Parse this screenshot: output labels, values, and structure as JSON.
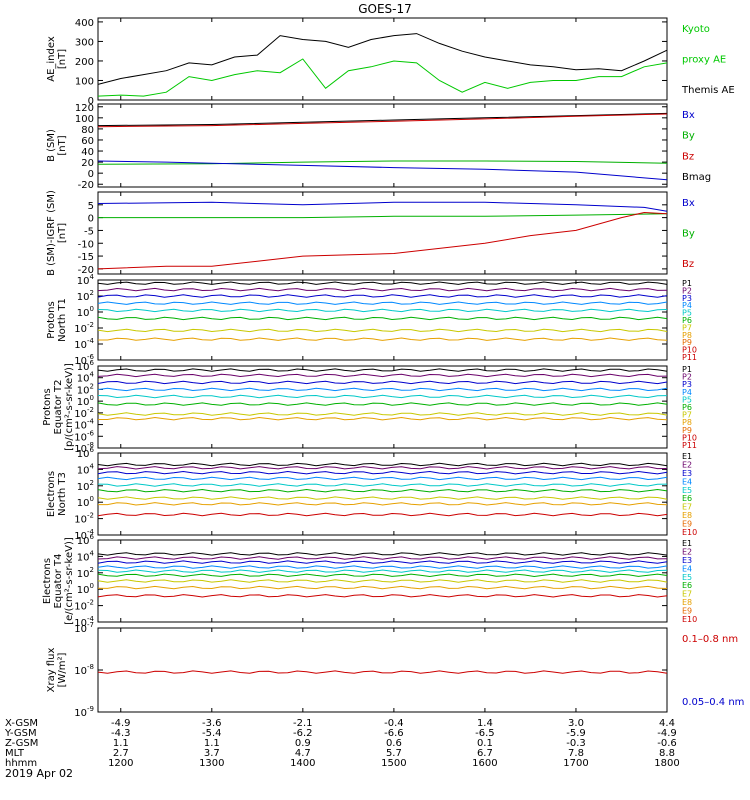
{
  "title": "GOES-17",
  "date_label": "2019 Apr 02",
  "orbit_table": {
    "rows": [
      {
        "label": "X-GSM",
        "values": [
          "-4.9",
          "-3.6",
          "-2.1",
          "-0.4",
          "1.4",
          "3.0",
          "4.4"
        ]
      },
      {
        "label": "Y-GSM",
        "values": [
          "-4.3",
          "-5.4",
          "-6.2",
          "-6.6",
          "-6.5",
          "-5.9",
          "-4.9"
        ]
      },
      {
        "label": "Z-GSM",
        "values": [
          "1.1",
          "1.1",
          "0.9",
          "0.6",
          "0.1",
          "-0.3",
          "-0.6"
        ]
      },
      {
        "label": "MLT",
        "values": [
          "2.7",
          "3.7",
          "4.7",
          "5.7",
          "6.7",
          "7.8",
          "8.8"
        ]
      },
      {
        "label": "hhmm",
        "values": [
          "1200",
          "1300",
          "1400",
          "1500",
          "1600",
          "1700",
          "1800"
        ]
      }
    ]
  },
  "chart_data": [
    {
      "type": "line",
      "id": "ae",
      "ylabel": [
        "AE_index",
        "[nT]"
      ],
      "ylim": [
        0,
        420
      ],
      "yticks": [
        0,
        100,
        200,
        300,
        400
      ],
      "log": false,
      "time_range": [
        "11:45",
        "18:00"
      ],
      "legend": [
        {
          "text": "Kyoto",
          "color": "#00c800"
        },
        {
          "text": "proxy AE",
          "color": "#00c800"
        },
        {
          "text": "Themis AE",
          "color": "#000000"
        }
      ],
      "series": [
        {
          "color": "#000000",
          "points": [
            [
              11.75,
              80
            ],
            [
              12.0,
              110
            ],
            [
              12.25,
              130
            ],
            [
              12.5,
              150
            ],
            [
              12.75,
              190
            ],
            [
              13.0,
              180
            ],
            [
              13.25,
              220
            ],
            [
              13.5,
              230
            ],
            [
              13.75,
              330
            ],
            [
              14.0,
              310
            ],
            [
              14.25,
              300
            ],
            [
              14.5,
              270
            ],
            [
              14.75,
              310
            ],
            [
              15.0,
              330
            ],
            [
              15.25,
              340
            ],
            [
              15.5,
              290
            ],
            [
              15.75,
              250
            ],
            [
              16.0,
              220
            ],
            [
              16.25,
              200
            ],
            [
              16.5,
              180
            ],
            [
              16.75,
              170
            ],
            [
              17.0,
              155
            ],
            [
              17.25,
              160
            ],
            [
              17.5,
              150
            ],
            [
              17.75,
              200
            ],
            [
              18.0,
              255
            ]
          ]
        },
        {
          "color": "#00c800",
          "points": [
            [
              11.75,
              20
            ],
            [
              12.0,
              25
            ],
            [
              12.25,
              20
            ],
            [
              12.5,
              40
            ],
            [
              12.75,
              120
            ],
            [
              13.0,
              100
            ],
            [
              13.25,
              130
            ],
            [
              13.5,
              150
            ],
            [
              13.75,
              140
            ],
            [
              14.0,
              210
            ],
            [
              14.25,
              60
            ],
            [
              14.5,
              150
            ],
            [
              14.75,
              170
            ],
            [
              15.0,
              200
            ],
            [
              15.25,
              190
            ],
            [
              15.5,
              100
            ],
            [
              15.75,
              40
            ],
            [
              16.0,
              90
            ],
            [
              16.25,
              60
            ],
            [
              16.5,
              90
            ],
            [
              16.75,
              100
            ],
            [
              17.0,
              100
            ],
            [
              17.25,
              120
            ],
            [
              17.5,
              120
            ],
            [
              17.75,
              170
            ],
            [
              18.0,
              190
            ]
          ]
        }
      ]
    },
    {
      "type": "line",
      "id": "bsm",
      "ylabel": [
        "B (SM)",
        "[nT]"
      ],
      "ylim": [
        -25,
        125
      ],
      "yticks": [
        -20,
        0,
        20,
        40,
        60,
        80,
        100,
        120
      ],
      "log": false,
      "legend": [
        {
          "text": "Bx",
          "color": "#0000cc"
        },
        {
          "text": "By",
          "color": "#00b000"
        },
        {
          "text": "Bz",
          "color": "#cc0000"
        },
        {
          "text": "Bmag",
          "color": "#000000"
        }
      ],
      "series": [
        {
          "color": "#000000",
          "points": [
            [
              11.75,
              86
            ],
            [
              13.0,
              88
            ],
            [
              14.0,
              92
            ],
            [
              15.0,
              96
            ],
            [
              16.0,
              100
            ],
            [
              17.0,
              104
            ],
            [
              18.0,
              108
            ]
          ]
        },
        {
          "color": "#cc0000",
          "points": [
            [
              11.75,
              84
            ],
            [
              13.0,
              86
            ],
            [
              14.0,
              90
            ],
            [
              15.0,
              94
            ],
            [
              16.0,
              98
            ],
            [
              17.0,
              103
            ],
            [
              18.0,
              107
            ]
          ]
        },
        {
          "color": "#00b000",
          "points": [
            [
              11.75,
              16
            ],
            [
              13.0,
              17
            ],
            [
              14.0,
              20
            ],
            [
              15.0,
              22
            ],
            [
              16.0,
              22
            ],
            [
              17.0,
              21
            ],
            [
              18.0,
              18
            ]
          ]
        },
        {
          "color": "#0000cc",
          "points": [
            [
              11.75,
              22
            ],
            [
              12.5,
              20
            ],
            [
              13.0,
              18
            ],
            [
              14.0,
              14
            ],
            [
              15.0,
              10
            ],
            [
              16.0,
              7
            ],
            [
              17.0,
              2
            ],
            [
              18.0,
              -12
            ]
          ]
        }
      ]
    },
    {
      "type": "line",
      "id": "bdiff",
      "ylabel": [
        "B (SM)-IGRF (SM)",
        "[nT]"
      ],
      "ylim": [
        -22,
        10
      ],
      "yticks": [
        -20,
        -15,
        -10,
        -5,
        0,
        5
      ],
      "log": false,
      "legend": [
        {
          "text": "Bx",
          "color": "#0000cc"
        },
        {
          "text": "By",
          "color": "#00b000"
        },
        {
          "text": "Bz",
          "color": "#cc0000"
        }
      ],
      "series": [
        {
          "color": "#0000cc",
          "points": [
            [
              11.75,
              5.5
            ],
            [
              13.0,
              6
            ],
            [
              14.0,
              5
            ],
            [
              15.0,
              6
            ],
            [
              16.0,
              6
            ],
            [
              17.0,
              5
            ],
            [
              17.75,
              4
            ],
            [
              18.0,
              2.5
            ]
          ]
        },
        {
          "color": "#00b000",
          "points": [
            [
              11.75,
              0
            ],
            [
              13.0,
              0
            ],
            [
              14.0,
              0
            ],
            [
              15.0,
              0.5
            ],
            [
              16.0,
              0.5
            ],
            [
              17.0,
              1
            ],
            [
              18.0,
              1.5
            ]
          ]
        },
        {
          "color": "#cc0000",
          "points": [
            [
              11.75,
              -20
            ],
            [
              12.5,
              -19
            ],
            [
              13.0,
              -19
            ],
            [
              13.5,
              -17
            ],
            [
              14.0,
              -15
            ],
            [
              15.0,
              -14
            ],
            [
              16.0,
              -10
            ],
            [
              16.5,
              -7
            ],
            [
              17.0,
              -5
            ],
            [
              17.5,
              0
            ],
            [
              17.75,
              2
            ],
            [
              18.0,
              1.5
            ]
          ]
        }
      ]
    },
    {
      "type": "line",
      "id": "p-north",
      "ylabel": [
        "Protons",
        "North T1"
      ],
      "ylim_log10": [
        -6,
        4
      ],
      "ytick_exponents": [
        -6,
        -4,
        -2,
        0,
        2,
        4
      ],
      "log": true,
      "legend": [
        {
          "text": "P1",
          "color": "#000000"
        },
        {
          "text": "P2",
          "color": "#6a006a"
        },
        {
          "text": "P3",
          "color": "#0000cc"
        },
        {
          "text": "P4",
          "color": "#0088ff"
        },
        {
          "text": "P5",
          "color": "#00c8c8"
        },
        {
          "text": "P6",
          "color": "#00b000"
        },
        {
          "text": "P7",
          "color": "#c8c800"
        },
        {
          "text": "P8",
          "color": "#e6a000"
        },
        {
          "text": "P9",
          "color": "#e66a00"
        },
        {
          "text": "P10",
          "color": "#cc0000"
        },
        {
          "text": "P11",
          "color": "#cc0000"
        }
      ],
      "series": [
        {
          "color": "#000000",
          "log10": 3.6
        },
        {
          "color": "#6a006a",
          "log10": 2.8
        },
        {
          "color": "#0000cc",
          "log10": 2.0
        },
        {
          "color": "#0088ff",
          "log10": 1.1
        },
        {
          "color": "#00c8c8",
          "log10": 0.2
        },
        {
          "color": "#00b000",
          "log10": -0.8
        },
        {
          "color": "#c8c800",
          "log10": -2.3
        },
        {
          "color": "#e6a000",
          "log10": -3.4
        }
      ]
    },
    {
      "type": "line",
      "id": "p-equator",
      "ylabel": [
        "Protons",
        "Equator T2",
        "[p/(cm²-s-sr-keV)]"
      ],
      "ylim_log10": [
        -8,
        6
      ],
      "ytick_exponents": [
        -8,
        -6,
        -4,
        -2,
        0,
        2,
        4,
        6
      ],
      "log": true,
      "legend": [
        {
          "text": "P1",
          "color": "#000000"
        },
        {
          "text": "P2",
          "color": "#6a006a"
        },
        {
          "text": "P3",
          "color": "#0000cc"
        },
        {
          "text": "P4",
          "color": "#0088ff"
        },
        {
          "text": "P5",
          "color": "#00c8c8"
        },
        {
          "text": "P6",
          "color": "#00b000"
        },
        {
          "text": "P7",
          "color": "#c8c800"
        },
        {
          "text": "P8",
          "color": "#e6a000"
        },
        {
          "text": "P9",
          "color": "#e66a00"
        },
        {
          "text": "P10",
          "color": "#cc0000"
        },
        {
          "text": "P11",
          "color": "#cc0000"
        }
      ],
      "series": [
        {
          "color": "#000000",
          "log10": 5.3
        },
        {
          "color": "#6a006a",
          "log10": 4.4
        },
        {
          "color": "#0000cc",
          "log10": 3.2
        },
        {
          "color": "#0088ff",
          "log10": 2.0
        },
        {
          "color": "#00c8c8",
          "log10": 0.8
        },
        {
          "color": "#00b000",
          "log10": -0.5
        },
        {
          "color": "#c8c800",
          "log10": -2.2
        },
        {
          "color": "#e6a000",
          "log10": -3.0
        }
      ]
    },
    {
      "type": "line",
      "id": "e-north",
      "ylabel": [
        "Electrons",
        "North T3"
      ],
      "ylim_log10": [
        -4,
        6
      ],
      "ytick_exponents": [
        -4,
        -2,
        0,
        2,
        4,
        6
      ],
      "log": true,
      "legend": [
        {
          "text": "E1",
          "color": "#000000"
        },
        {
          "text": "E2",
          "color": "#6a006a"
        },
        {
          "text": "E3",
          "color": "#0000cc"
        },
        {
          "text": "E4",
          "color": "#0088ff"
        },
        {
          "text": "E5",
          "color": "#00c8c8"
        },
        {
          "text": "E6",
          "color": "#00b000"
        },
        {
          "text": "E7",
          "color": "#c8c800"
        },
        {
          "text": "E8",
          "color": "#e6a000"
        },
        {
          "text": "E9",
          "color": "#e66a00"
        },
        {
          "text": "E10",
          "color": "#cc0000"
        }
      ],
      "series": [
        {
          "color": "#000000",
          "log10": 4.6
        },
        {
          "color": "#6a006a",
          "log10": 4.2
        },
        {
          "color": "#0000cc",
          "log10": 3.6
        },
        {
          "color": "#0088ff",
          "log10": 2.9
        },
        {
          "color": "#00c8c8",
          "log10": 2.1
        },
        {
          "color": "#00b000",
          "log10": 1.4
        },
        {
          "color": "#c8c800",
          "log10": 0.5
        },
        {
          "color": "#e6a000",
          "log10": -0.2
        },
        {
          "color": "#cc0000",
          "log10": -1.5
        }
      ]
    },
    {
      "type": "line",
      "id": "e-equator",
      "ylabel": [
        "Electrons",
        "Equator T4",
        "[e/(cm²-s-sr-keV)]"
      ],
      "ylim_log10": [
        -4,
        6
      ],
      "ytick_exponents": [
        -4,
        -2,
        0,
        2,
        4,
        6
      ],
      "log": true,
      "legend": [
        {
          "text": "E1",
          "color": "#000000"
        },
        {
          "text": "E2",
          "color": "#6a006a"
        },
        {
          "text": "E3",
          "color": "#0000cc"
        },
        {
          "text": "E4",
          "color": "#0088ff"
        },
        {
          "text": "E5",
          "color": "#00c8c8"
        },
        {
          "text": "E6",
          "color": "#00b000"
        },
        {
          "text": "E7",
          "color": "#c8c800"
        },
        {
          "text": "E8",
          "color": "#e6a000"
        },
        {
          "text": "E9",
          "color": "#e66a00"
        },
        {
          "text": "E10",
          "color": "#cc0000"
        }
      ],
      "series": [
        {
          "color": "#000000",
          "log10": 4.3
        },
        {
          "color": "#6a006a",
          "log10": 3.8
        },
        {
          "color": "#0000cc",
          "log10": 3.3
        },
        {
          "color": "#0088ff",
          "log10": 2.7
        },
        {
          "color": "#00c8c8",
          "log10": 2.2
        },
        {
          "color": "#00b000",
          "log10": 1.7
        },
        {
          "color": "#c8c800",
          "log10": 1.0
        },
        {
          "color": "#e6a000",
          "log10": 0.2
        },
        {
          "color": "#cc0000",
          "log10": -0.8
        }
      ]
    },
    {
      "type": "line",
      "id": "xray",
      "ylabel": [
        "Xray flux",
        "[W/m²]"
      ],
      "ylim_log10": [
        -9,
        -7
      ],
      "ytick_exponents": [
        -9,
        -8,
        -7
      ],
      "log": true,
      "legend": [
        {
          "text": "0.1–0.8 nm",
          "color": "#cc0000"
        },
        {
          "text": "0.05–0.4 nm",
          "color": "#0000cc"
        }
      ],
      "series": [
        {
          "color": "#cc0000",
          "log10": -8.05
        }
      ]
    }
  ]
}
